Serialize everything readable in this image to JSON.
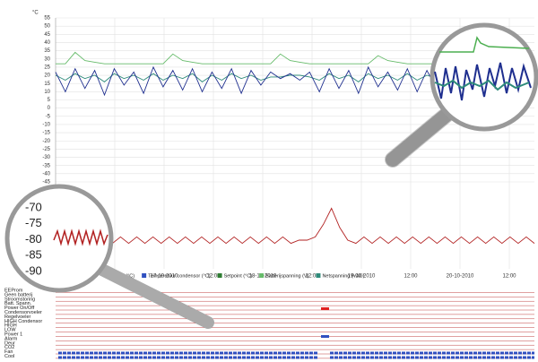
{
  "chart": {
    "unit": "°C",
    "yticks": [
      55,
      50,
      45,
      40,
      35,
      30,
      25,
      20,
      15,
      10,
      5,
      0,
      -5,
      -10,
      -15,
      -20,
      -25,
      -30,
      -35,
      -40,
      -45
    ],
    "x_labels": [
      "12:00",
      "17-10-2010",
      "12:00",
      "18-10-2010",
      "12:00",
      "19-10-2010",
      "12:00",
      "20-10-2010",
      "12:00"
    ],
    "legend": [
      {
        "name": "meler (°C)",
        "color": "#1f2f8f"
      },
      {
        "name": "Temperatuur condensor (°C)",
        "color": "#3050c0"
      },
      {
        "name": "Setpoint (°C)",
        "color": "#2e7d32"
      },
      {
        "name": "Batterijspanning (V)",
        "color": "#66bb6a"
      },
      {
        "name": "Netspanning (VAC)",
        "color": "#2e8b7a"
      }
    ],
    "series": [
      {
        "color": "#66bb6a",
        "values": [
          27,
          27,
          34,
          29,
          28,
          27,
          27,
          27,
          27,
          27,
          27,
          27,
          33,
          29,
          28,
          27,
          27,
          27,
          27,
          27,
          27,
          27,
          27,
          33,
          29,
          28,
          27,
          27,
          27,
          27,
          27,
          27,
          27,
          32,
          29,
          28,
          27,
          27,
          27,
          27,
          27,
          27,
          27,
          27,
          27,
          27,
          27,
          27,
          27,
          27
        ]
      },
      {
        "color": "#2e8b7a",
        "values": [
          20,
          17,
          21,
          18,
          20,
          16,
          21,
          18,
          20,
          17,
          21,
          17,
          20,
          18,
          21,
          16,
          20,
          17,
          21,
          18,
          20,
          17,
          19,
          19,
          20,
          20,
          19,
          17,
          21,
          18,
          20,
          16,
          21,
          18,
          20,
          17,
          21,
          17,
          20,
          18,
          21,
          16,
          20,
          17,
          21,
          18,
          20,
          17,
          21,
          18
        ]
      },
      {
        "color": "#1f2f8f",
        "values": [
          22,
          10,
          24,
          12,
          23,
          8,
          24,
          14,
          22,
          9,
          25,
          13,
          23,
          11,
          24,
          10,
          22,
          12,
          24,
          9,
          23,
          14,
          22,
          18,
          21,
          17,
          22,
          10,
          24,
          12,
          23,
          9,
          25,
          13,
          22,
          11,
          24,
          10,
          23,
          12,
          22,
          9,
          24,
          13,
          23,
          11,
          24,
          10,
          22,
          12
        ]
      }
    ],
    "zoom_ticks": [
      -70,
      -75,
      -80,
      -85,
      -90
    ],
    "lower_series": {
      "color": "#b22222",
      "values": [
        -79,
        -81,
        -79,
        -81,
        -79,
        -81,
        -79,
        -81,
        -79,
        -81,
        -79,
        -81,
        -79,
        -81,
        -79,
        -81,
        -79,
        -81,
        -79,
        -81,
        -79,
        -81,
        -79,
        -81,
        -79,
        -81,
        -79,
        -81,
        -79,
        -81,
        -80,
        -80,
        -79,
        -75,
        -70,
        -76,
        -80,
        -81,
        -79,
        -81,
        -79,
        -81,
        -79,
        -81,
        -79,
        -81,
        -79,
        -81,
        -79,
        -81,
        -79,
        -81,
        -79,
        -81,
        -79,
        -81,
        -79,
        -81,
        -79,
        -81
      ]
    },
    "status_rows": [
      "EEProm",
      "Geen batterij",
      "Stroomstoring",
      "Batt. Spann.",
      "Power On/Off",
      "Condensorvoeler",
      "Regelvoeler",
      "HIGH Condensor",
      "HIGH",
      "LOW",
      "Power 1",
      "Alarm",
      "Deur",
      "CO2",
      "Fan",
      "Cool"
    ]
  }
}
